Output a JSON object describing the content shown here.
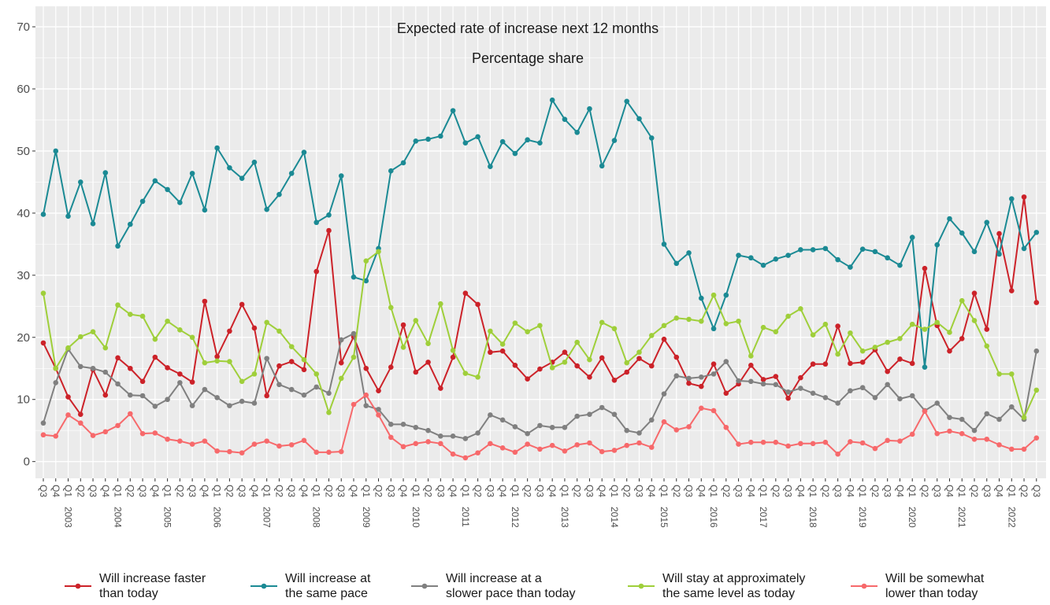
{
  "chart_data": {
    "type": "line",
    "title": "Expected rate of increase next 12 months",
    "subtitle": "Percentage share",
    "categories": [
      "Q3",
      "Q4",
      "Q1",
      "Q2",
      "Q3",
      "Q4",
      "Q1",
      "Q2",
      "Q3",
      "Q4",
      "Q1",
      "Q2",
      "Q3",
      "Q4",
      "Q1",
      "Q2",
      "Q3",
      "Q4",
      "Q1",
      "Q2",
      "Q3",
      "Q4",
      "Q1",
      "Q2",
      "Q3",
      "Q4",
      "Q1",
      "Q2",
      "Q3",
      "Q4",
      "Q1",
      "Q2",
      "Q3",
      "Q4",
      "Q1",
      "Q2",
      "Q3",
      "Q4",
      "Q1",
      "Q2",
      "Q3",
      "Q4",
      "Q1",
      "Q2",
      "Q3",
      "Q4",
      "Q1",
      "Q2",
      "Q3",
      "Q4",
      "Q1",
      "Q2",
      "Q3",
      "Q4",
      "Q1",
      "Q2",
      "Q3",
      "Q4",
      "Q1",
      "Q2",
      "Q3",
      "Q4",
      "Q1",
      "Q2",
      "Q3",
      "Q4",
      "Q1",
      "Q2",
      "Q3",
      "Q4",
      "Q1",
      "Q2",
      "Q3",
      "Q4",
      "Q1",
      "Q2",
      "Q3",
      "Q4",
      "Q1",
      "Q2",
      "Q3"
    ],
    "years": [
      null,
      null,
      "2003",
      null,
      null,
      null,
      "2004",
      null,
      null,
      null,
      "2005",
      null,
      null,
      null,
      "2006",
      null,
      null,
      null,
      "2007",
      null,
      null,
      null,
      "2008",
      null,
      null,
      null,
      "2009",
      null,
      null,
      null,
      "2010",
      null,
      null,
      null,
      "2011",
      null,
      null,
      null,
      "2012",
      null,
      null,
      null,
      "2013",
      null,
      null,
      null,
      "2014",
      null,
      null,
      null,
      "2015",
      null,
      null,
      null,
      "2016",
      null,
      null,
      null,
      "2017",
      null,
      null,
      null,
      "2018",
      null,
      null,
      null,
      "2019",
      null,
      null,
      null,
      "2020",
      null,
      null,
      null,
      "2021",
      null,
      null,
      null,
      "2022",
      null,
      null
    ],
    "ylim": [
      -2.7,
      73.3
    ],
    "yticks": [
      0,
      10,
      20,
      30,
      40,
      50,
      60,
      70
    ],
    "grid": true,
    "legend": "bottom",
    "series": [
      {
        "name": "Will increase faster than today",
        "color": "#cc2229",
        "values": [
          19.1,
          15,
          10.4,
          7.6,
          14.8,
          10.7,
          16.7,
          15,
          12.9,
          16.8,
          15.1,
          14.1,
          12.8,
          25.8,
          16.9,
          21,
          25.3,
          21.5,
          10.6,
          15.4,
          16.1,
          14.8,
          30.6,
          37.2,
          15.9,
          20.1,
          15,
          11.4,
          15.2,
          22,
          14.4,
          16,
          11.8,
          16.8,
          27.1,
          25.3,
          17.6,
          17.8,
          15.5,
          13.3,
          14.9,
          16,
          17.6,
          15.4,
          13.6,
          16.7,
          13.1,
          14.4,
          16.6,
          15.4,
          19.7,
          16.8,
          12.6,
          12.1,
          15.7,
          11,
          12.5,
          15.5,
          13.2,
          13.7,
          10.2,
          13.5,
          15.7,
          15.7,
          21.8,
          15.8,
          16,
          18,
          14.5,
          16.5,
          15.8,
          31.1,
          21.9,
          17.8,
          19.8,
          27.1,
          21.3,
          36.7,
          27.5,
          42.6,
          25.6
        ]
      },
      {
        "name": "Will increase at the same pace",
        "color": "#1b8a94",
        "values": [
          39.8,
          50,
          39.5,
          45,
          38.3,
          46.5,
          34.7,
          38.2,
          41.9,
          45.2,
          43.8,
          41.7,
          46.4,
          40.5,
          50.5,
          47.3,
          45.6,
          48.2,
          40.6,
          43,
          46.4,
          49.8,
          38.5,
          39.7,
          46,
          29.7,
          29.1,
          34.3,
          46.8,
          48.1,
          51.6,
          51.9,
          52.4,
          56.5,
          51.3,
          52.3,
          47.5,
          51.5,
          49.6,
          51.8,
          51.3,
          58.2,
          55.1,
          53,
          56.8,
          47.6,
          51.7,
          58,
          55.2,
          52.1,
          35,
          31.9,
          33.6,
          26.3,
          21.4,
          26.8,
          33.2,
          32.8,
          31.6,
          32.6,
          33.2,
          34.1,
          34.1,
          34.3,
          32.5,
          31.3,
          34.2,
          33.8,
          32.8,
          31.6,
          36.1,
          15.2,
          34.9,
          39.1,
          36.8,
          33.8,
          38.5,
          33.4,
          42.3,
          34.3,
          36.9
        ]
      },
      {
        "name": "Will increase at a slower pace than today",
        "color": "#808080",
        "values": [
          6.2,
          12.7,
          18.1,
          15.3,
          15,
          14.4,
          12.5,
          10.7,
          10.6,
          8.9,
          10,
          12.7,
          9,
          11.6,
          10.3,
          9,
          9.7,
          9.4,
          16.6,
          12.4,
          11.6,
          10.7,
          12,
          11,
          19.6,
          20.6,
          9,
          8.4,
          6,
          6,
          5.5,
          5,
          4.1,
          4.1,
          3.7,
          4.6,
          7.5,
          6.7,
          5.6,
          4.5,
          5.8,
          5.5,
          5.5,
          7.3,
          7.6,
          8.7,
          7.6,
          5,
          4.6,
          6.7,
          10.9,
          13.8,
          13.4,
          13.6,
          14.1,
          16.1,
          13,
          12.9,
          12.5,
          12.4,
          11.2,
          11.8,
          11,
          10.3,
          9.4,
          11.4,
          11.9,
          10.3,
          12.4,
          10.1,
          10.6,
          8.2,
          9.4,
          7.1,
          6.8,
          5,
          7.7,
          6.8,
          8.8,
          6.8,
          17.8
        ]
      },
      {
        "name": "Will stay at approximately the same level as today",
        "color": "#9fcf3a",
        "values": [
          27.1,
          15,
          18.3,
          20.1,
          20.9,
          18.3,
          25.2,
          23.7,
          23.4,
          19.7,
          22.6,
          21.2,
          20,
          15.9,
          16.2,
          16.1,
          12.9,
          14.1,
          22.4,
          21,
          18.5,
          16.4,
          14.1,
          7.9,
          13.4,
          16.8,
          32.3,
          33.8,
          24.8,
          18.4,
          22.7,
          19,
          25.4,
          17.9,
          14.2,
          13.6,
          21,
          18.9,
          22.3,
          20.9,
          21.9,
          15.1,
          16,
          19.2,
          16.4,
          22.4,
          21.4,
          15.9,
          17.6,
          20.3,
          21.9,
          23.1,
          22.9,
          22.6,
          26.8,
          22.2,
          22.6,
          17,
          21.6,
          20.9,
          23.4,
          24.6,
          20.4,
          22.1,
          17.3,
          20.7,
          17.8,
          18.4,
          19.2,
          19.8,
          22.1,
          21.3,
          22.4,
          20.8,
          25.9,
          22.7,
          18.6,
          14.1,
          14.1,
          7.1,
          11.5
        ]
      },
      {
        "name": "Will be somewhat lower than today",
        "color": "#f7696b",
        "values": [
          4.3,
          4.1,
          7.5,
          6.2,
          4.2,
          4.8,
          5.8,
          7.7,
          4.5,
          4.6,
          3.6,
          3.3,
          2.8,
          3.3,
          1.7,
          1.6,
          1.4,
          2.8,
          3.3,
          2.5,
          2.7,
          3.4,
          1.5,
          1.5,
          1.6,
          9.2,
          10.7,
          7.5,
          3.9,
          2.4,
          2.9,
          3.2,
          2.9,
          1.2,
          0.6,
          1.4,
          2.9,
          2.2,
          1.5,
          2.8,
          2,
          2.6,
          1.7,
          2.7,
          3,
          1.6,
          1.8,
          2.6,
          3,
          2.3,
          6.4,
          5.1,
          5.6,
          8.6,
          8.2,
          5.5,
          2.8,
          3.1,
          3.1,
          3.1,
          2.5,
          2.9,
          2.9,
          3.1,
          1.2,
          3.2,
          3,
          2.1,
          3.4,
          3.3,
          4.4,
          8.1,
          4.5,
          4.9,
          4.5,
          3.6,
          3.6,
          2.7,
          2,
          2,
          3.8
        ]
      }
    ]
  }
}
